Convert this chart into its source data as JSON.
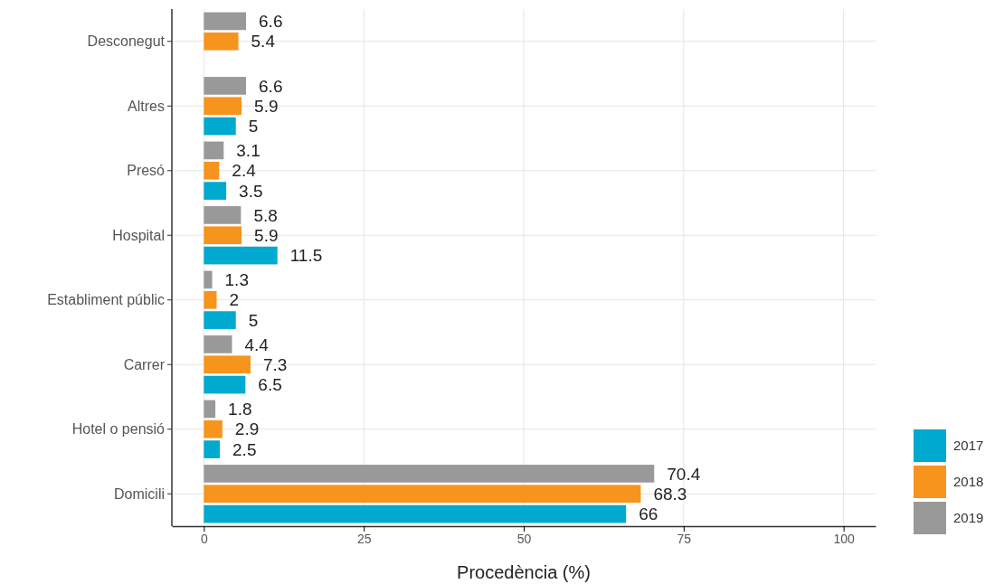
{
  "chart_data": {
    "type": "bar",
    "orientation": "horizontal",
    "xlabel": "Procedència (%)",
    "categories": [
      "Desconegut",
      "Altres",
      "Presó",
      "Hospital",
      "Establiment públic",
      "Carrer",
      "Hotel o pensió",
      "Domicili"
    ],
    "series": [
      {
        "name": "2017",
        "color": "#00a9cf",
        "values": [
          null,
          5,
          3.5,
          11.5,
          5,
          6.5,
          2.5,
          66
        ]
      },
      {
        "name": "2018",
        "color": "#f7941d",
        "values": [
          5.4,
          5.9,
          2.4,
          5.9,
          2,
          7.3,
          2.9,
          68.3
        ]
      },
      {
        "name": "2019",
        "color": "#999999",
        "values": [
          6.6,
          6.6,
          3.1,
          5.8,
          1.3,
          4.4,
          1.8,
          70.4
        ]
      }
    ],
    "xlim": [
      -5,
      105
    ],
    "xticks": [
      0,
      25,
      50,
      75,
      100
    ],
    "grid": true,
    "legend": "bottom right",
    "data_labels": true
  }
}
